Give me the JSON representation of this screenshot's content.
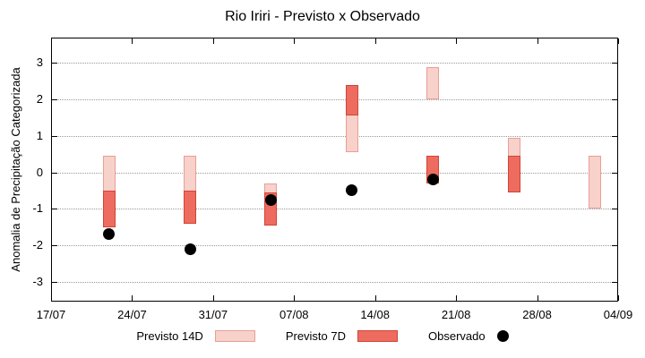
{
  "title": "Rio Iriri - Previsto x Observado",
  "y_axis": {
    "label": "Anomalia de Precipitação Categorizada",
    "ticks": [
      3,
      2,
      1,
      0,
      -1,
      -2,
      -3
    ]
  },
  "x_axis": {
    "ticks": [
      "17/07",
      "24/07",
      "31/07",
      "07/08",
      "14/08",
      "21/08",
      "28/08",
      "04/09"
    ]
  },
  "legend": {
    "items": [
      {
        "label": "Previsto 14D",
        "swatch": "box",
        "color": "forecast14"
      },
      {
        "label": "Previsto 7D",
        "swatch": "box",
        "color": "forecast7"
      },
      {
        "label": "Observado",
        "swatch": "dot",
        "color": "observed"
      }
    ]
  },
  "colors": {
    "forecast14_fill": "#f8d1cb",
    "forecast14_border": "#e89f96",
    "forecast7_fill": "#ed6c5f",
    "forecast7_border": "#d14436",
    "observed": "#000000",
    "grid": "#9a9a9a",
    "axis": "#000000"
  },
  "chart_data": {
    "type": "bar",
    "title": "Rio Iriri - Previsto x Observado",
    "xlabel": "",
    "ylabel": "Anomalia de Precipitação Categorizada",
    "x_tick_labels": [
      "17/07",
      "24/07",
      "31/07",
      "07/08",
      "14/08",
      "21/08",
      "28/08",
      "04/09"
    ],
    "x_tick_days": [
      0,
      7,
      14,
      21,
      28,
      35,
      42,
      49
    ],
    "xlim_days": [
      0,
      49
    ],
    "ylim": [
      -3.55,
      3.7
    ],
    "y_ticks": [
      -3,
      -2,
      -1,
      0,
      1,
      2,
      3
    ],
    "grid": "horizontal-dotted",
    "legend_position": "bottom",
    "series": [
      {
        "name": "Previsto 14D",
        "kind": "range-bar",
        "color": "forecast14",
        "points": [
          {
            "day": 5,
            "date": "22/07",
            "low": -1.5,
            "high": 0.45
          },
          {
            "day": 12,
            "date": "29/07",
            "low": -1.4,
            "high": 0.45
          },
          {
            "day": 19,
            "date": "05/08",
            "low": -1.45,
            "high": -0.3
          },
          {
            "day": 26,
            "date": "12/08",
            "low": 0.55,
            "high": 2.4
          },
          {
            "day": 33,
            "date": "19/08",
            "low": 2.0,
            "high": 2.9
          },
          {
            "day": 40,
            "date": "26/08",
            "low": -0.55,
            "high": 0.95
          },
          {
            "day": 47,
            "date": "02/09",
            "low": -1.0,
            "high": 0.45
          }
        ]
      },
      {
        "name": "Previsto 7D",
        "kind": "range-bar",
        "color": "forecast7",
        "points": [
          {
            "day": 5,
            "date": "22/07",
            "low": -1.5,
            "high": -0.5
          },
          {
            "day": 12,
            "date": "29/07",
            "low": -1.4,
            "high": -0.5
          },
          {
            "day": 19,
            "date": "05/08",
            "low": -1.45,
            "high": -0.55
          },
          {
            "day": 26,
            "date": "12/08",
            "low": 1.55,
            "high": 2.4
          },
          {
            "day": 33,
            "date": "19/08",
            "low": -0.3,
            "high": 0.45
          },
          {
            "day": 40,
            "date": "26/08",
            "low": -0.55,
            "high": 0.45
          }
        ]
      },
      {
        "name": "Observado",
        "kind": "scatter",
        "color": "observed",
        "points": [
          {
            "day": 5,
            "date": "22/07",
            "value": -1.7
          },
          {
            "day": 12,
            "date": "29/07",
            "value": -2.1
          },
          {
            "day": 19,
            "date": "05/08",
            "value": -0.75
          },
          {
            "day": 26,
            "date": "12/08",
            "value": -0.5
          },
          {
            "day": 33,
            "date": "19/08",
            "value": -0.2
          }
        ]
      }
    ]
  }
}
